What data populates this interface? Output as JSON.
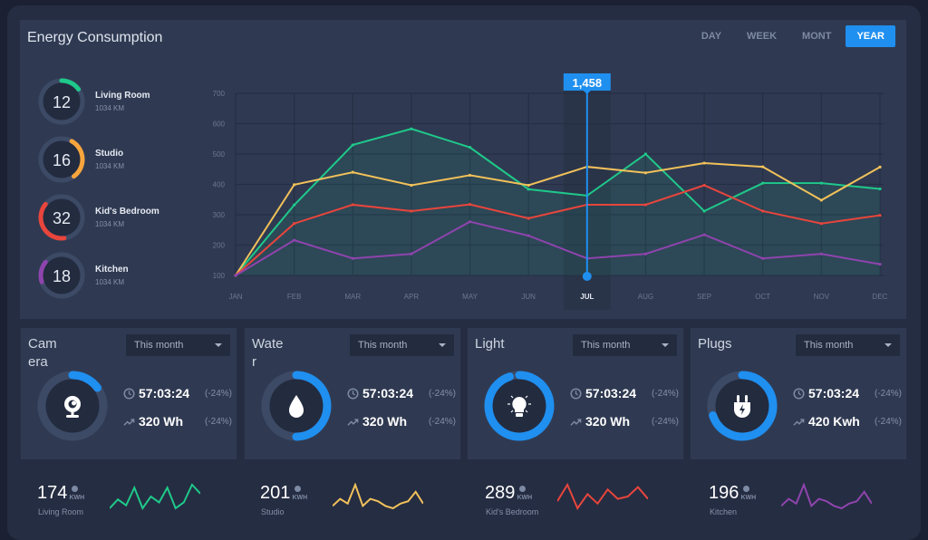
{
  "header": {
    "title": "Energy Consumption",
    "tabs": [
      {
        "label": "DAY",
        "active": false
      },
      {
        "label": "WEEK",
        "active": false
      },
      {
        "label": "MONT",
        "active": false
      },
      {
        "label": "YEAR",
        "active": true
      }
    ]
  },
  "rooms": [
    {
      "value": "12",
      "name": "Living Room",
      "sub": "1034 KM",
      "color": "#1fc98a",
      "arc_start": 0.0,
      "arc_len": 0.15
    },
    {
      "value": "16",
      "name": "Studio",
      "sub": "1034 KM",
      "color": "#f7a53c",
      "arc_start": 0.08,
      "arc_len": 0.32
    },
    {
      "value": "32",
      "name": "Kid's Bedroom",
      "sub": "1034 KM",
      "color": "#e8453c",
      "arc_start": 0.48,
      "arc_len": 0.38
    },
    {
      "value": "18",
      "name": "Kitchen",
      "sub": "1034 KM",
      "color": "#8e44ad",
      "arc_start": 0.7,
      "arc_len": 0.16
    }
  ],
  "chart_data": {
    "type": "line",
    "categories": [
      "JAN",
      "FEB",
      "MAR",
      "APR",
      "MAY",
      "JUN",
      "JUL",
      "AUG",
      "SEP",
      "OCT",
      "NOV",
      "DEC"
    ],
    "ylim": [
      100,
      700
    ],
    "yticks": [
      700,
      600,
      500,
      400,
      300,
      200,
      100
    ],
    "grid": true,
    "highlight": {
      "category": "JUL",
      "label": "1,458"
    },
    "series": [
      {
        "color": "#1fc98a",
        "area": true,
        "values": [
          100,
          332,
          530,
          583,
          522,
          384,
          363,
          500,
          312,
          404,
          404,
          385
        ]
      },
      {
        "color": "#f1c15a",
        "values": [
          100,
          399,
          440,
          397,
          430,
          397,
          458,
          438,
          470,
          458,
          348,
          457
        ]
      },
      {
        "color": "#e8453c",
        "values": [
          100,
          271,
          333,
          312,
          334,
          288,
          333,
          333,
          397,
          312,
          271,
          298
        ]
      },
      {
        "color": "#8e44ad",
        "values": [
          100,
          216,
          156,
          171,
          277,
          231,
          156,
          171,
          234,
          156,
          171,
          137
        ]
      }
    ]
  },
  "cards": [
    {
      "title": "Camera",
      "period": "This month",
      "icon": "webcam",
      "progress": 0.15,
      "time": "57:03:24",
      "time_change": "(-24%)",
      "energy": "320 Wh",
      "energy_change": "(-24%)"
    },
    {
      "title": "Water",
      "period": "This month",
      "icon": "water-drop",
      "progress": 0.5,
      "time": "57:03:24",
      "time_change": "(-24%)",
      "energy": "320 Wh",
      "energy_change": "(-24%)"
    },
    {
      "title": "Light",
      "period": "This month",
      "icon": "light-bulb",
      "progress": 0.95,
      "time": "57:03:24",
      "time_change": "(-24%)",
      "energy": "320 Wh",
      "energy_change": "(-24%)"
    },
    {
      "title": "Plugs",
      "period": "This month",
      "icon": "plug",
      "progress": 0.7,
      "time": "57:03:24",
      "time_change": "(-24%)",
      "energy": "420 Kwh",
      "energy_change": "(-24%)"
    }
  ],
  "summary": [
    {
      "value": "174",
      "unit": "KWH",
      "label": "Living Room",
      "color": "#1fc98a",
      "trend": [
        2,
        5,
        3,
        9,
        2,
        6,
        4,
        9,
        2,
        4,
        10,
        7
      ]
    },
    {
      "value": "201",
      "unit": "KWH",
      "label": "Studio",
      "color": "#f1c15a",
      "trend": [
        3,
        6,
        4,
        12,
        3,
        6,
        5,
        3,
        2,
        4,
        5,
        9,
        4
      ]
    },
    {
      "value": "289",
      "unit": "KWH",
      "label": "Kid's Bedroom",
      "color": "#e8453c",
      "trend": [
        4,
        11,
        1,
        7,
        3,
        9,
        5,
        6,
        10,
        5
      ]
    },
    {
      "value": "196",
      "unit": "KWH",
      "label": "Kitchen",
      "color": "#8e44ad",
      "trend": [
        3,
        6,
        4,
        12,
        3,
        6,
        5,
        3,
        2,
        4,
        5,
        9,
        4
      ]
    }
  ]
}
